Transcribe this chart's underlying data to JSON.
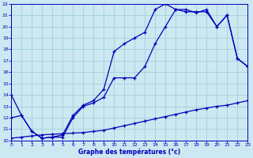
{
  "title": "Graphe des températures (°c)",
  "bg_color": "#cce8f0",
  "grid_color": "#99ccdd",
  "line_color": "#0000bb",
  "xlim": [
    0,
    23
  ],
  "ylim": [
    10,
    22
  ],
  "x_ticks": [
    0,
    1,
    2,
    3,
    4,
    5,
    6,
    7,
    8,
    9,
    10,
    11,
    12,
    13,
    14,
    15,
    16,
    17,
    18,
    19,
    20,
    21,
    22,
    23
  ],
  "y_ticks": [
    10,
    11,
    12,
    13,
    14,
    15,
    16,
    17,
    18,
    19,
    20,
    21,
    22
  ],
  "y_top": [
    14.0,
    12.2,
    10.8,
    10.2,
    10.3,
    10.5,
    12.2,
    13.1,
    13.5,
    14.5,
    17.8,
    18.5,
    19.0,
    19.5,
    21.5,
    22.0,
    21.5,
    21.5,
    21.2,
    21.5,
    20.0,
    21.0,
    17.2,
    16.5
  ],
  "y_mid": [
    12.0,
    12.2,
    10.8,
    10.2,
    10.3,
    10.3,
    12.0,
    13.0,
    13.3,
    13.8,
    15.5,
    15.5,
    15.5,
    16.5,
    18.5,
    20.0,
    21.5,
    21.3,
    21.3,
    21.3,
    20.0,
    21.0,
    17.2,
    16.5
  ],
  "y_bot": [
    10.2,
    10.3,
    10.4,
    10.5,
    10.55,
    10.6,
    10.65,
    10.7,
    10.8,
    10.9,
    11.1,
    11.3,
    11.5,
    11.7,
    11.9,
    12.1,
    12.3,
    12.5,
    12.7,
    12.85,
    13.0,
    13.1,
    13.3,
    13.5
  ]
}
